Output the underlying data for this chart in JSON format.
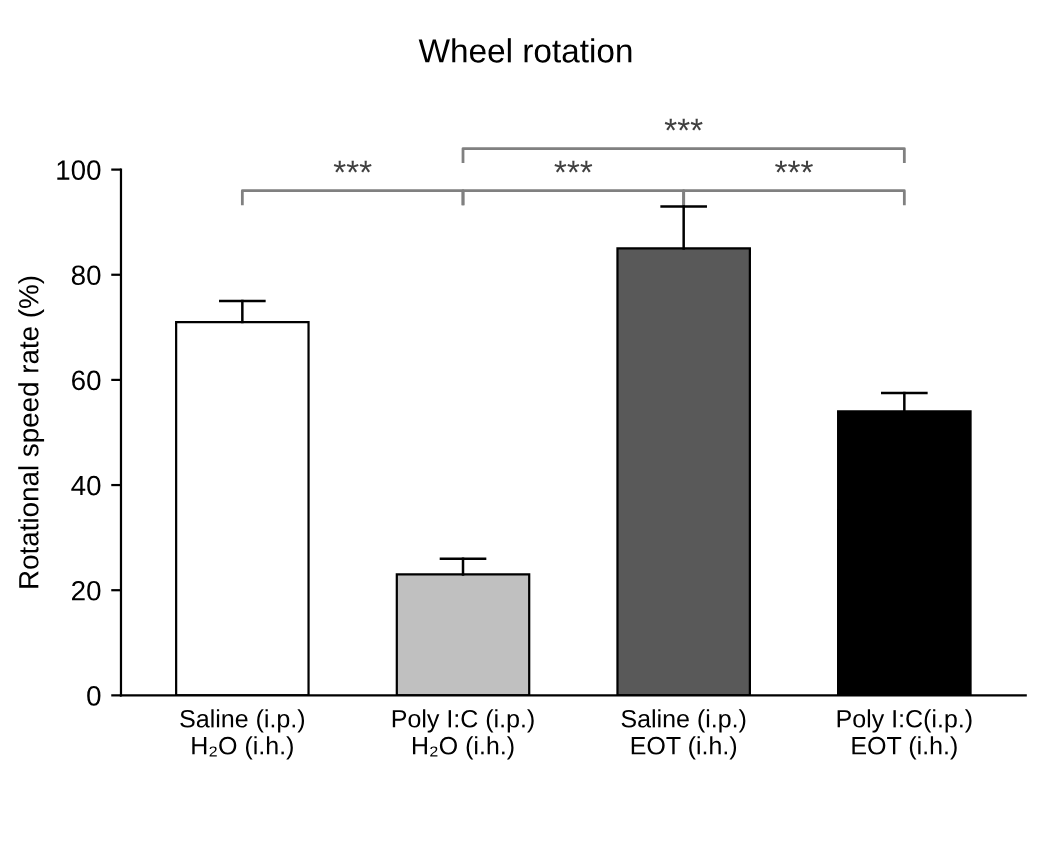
{
  "chart_data": {
    "type": "bar",
    "title": "Wheel rotation",
    "ylabel": "Rotational speed rate (%)",
    "categories": [
      "Saline (i.p.)\nH₂O (i.h.)",
      "Poly I:C (i.p.)\nH₂O (i.h.)",
      "Saline (i.p.)\nEOT (i.h.)",
      "Poly I:C(i.p.)\nEOT (i.h.)"
    ],
    "values": [
      71,
      23,
      85,
      54
    ],
    "errors": [
      [
        71,
        75
      ],
      [
        23,
        26
      ],
      [
        85,
        93
      ],
      [
        54,
        57.5
      ]
    ],
    "colors": [
      "#ffffff",
      "#c0c0c0",
      "#595959",
      "#000000"
    ],
    "ylim": [
      0,
      100
    ],
    "yticks": [
      0,
      20,
      40,
      60,
      80,
      100
    ],
    "grid": false,
    "legend": false,
    "annotations": [
      "***",
      "***",
      "***",
      "***"
    ]
  }
}
